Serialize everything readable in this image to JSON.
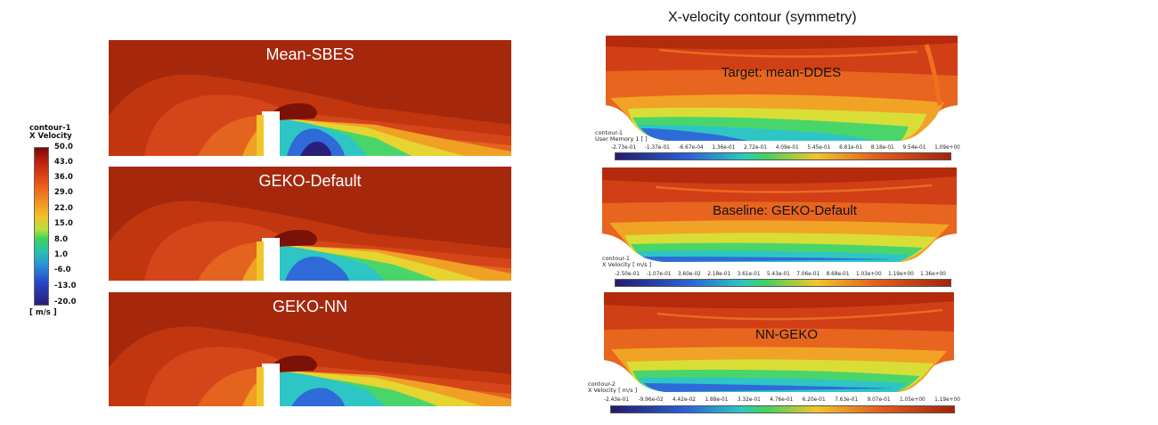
{
  "figure_title": "X-velocity contour (symmetry)",
  "left_panels": [
    {
      "title": "Mean-SBES"
    },
    {
      "title": "GEKO-Default"
    },
    {
      "title": "GEKO-NN"
    }
  ],
  "left_legend": {
    "title_line1": "contour-1",
    "title_line2": "X Velocity",
    "ticks": [
      "50.0",
      "43.0",
      "36.0",
      "29.0",
      "22.0",
      "15.0",
      "8.0",
      "1.0",
      "-6.0",
      "-13.0",
      "-20.0"
    ],
    "units": "[ m/s ]"
  },
  "right_panels": [
    {
      "title": "Target: mean-DDES",
      "legend_line1": "contour-1",
      "legend_line2": "User Memory 1 [ ]",
      "ticks": [
        "-2.73e-01",
        "-1.37e-01",
        "-6.67e-04",
        "1.36e-01",
        "2.72e-01",
        "4.09e-01",
        "5.45e-01",
        "6.81e-01",
        "8.18e-01",
        "9.54e-01",
        "1.09e+00"
      ]
    },
    {
      "title": "Baseline: GEKO-Default",
      "legend_line1": "contour-1",
      "legend_line2": "X Velocity [ m/s ]",
      "ticks": [
        "-2.50e-01",
        "-1.07e-01",
        "3.60e-02",
        "2.18e-01",
        "3.61e-01",
        "5.43e-01",
        "7.06e-01",
        "8.68e-01",
        "1.03e+00",
        "1.19e+00",
        "1.36e+00"
      ]
    },
    {
      "title": "NN-GEKO",
      "legend_line1": "contour-2",
      "legend_line2": "X Velocity [ m/s ]",
      "ticks": [
        "-2.43e-01",
        "-9.96e-02",
        "4.42e-02",
        "1.88e-01",
        "3.32e-01",
        "4.76e-01",
        "6.20e-01",
        "7.63e-01",
        "9.07e-01",
        "1.05e+00",
        "1.19e+00"
      ]
    }
  ],
  "colors": {
    "dark_red": "#a3240c",
    "red": "#c33310",
    "orange": "#e35f1d",
    "yellow": "#f2c52a",
    "green": "#44d25c",
    "cyan": "#2cc8c1",
    "blue": "#2a63d8",
    "dark_blue": "#241a6e"
  }
}
